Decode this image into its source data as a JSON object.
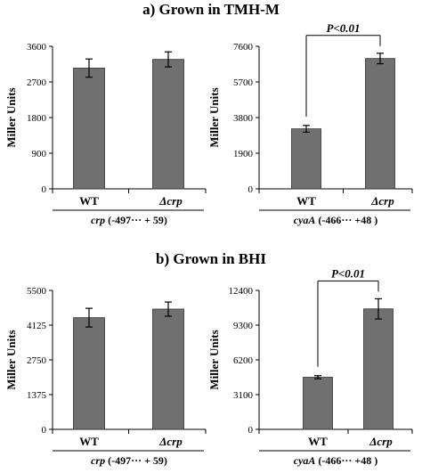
{
  "panels": [
    {
      "title": "a) Grown in TMH-M"
    },
    {
      "title": "b) Grown in BHI"
    }
  ],
  "chart_data": [
    {
      "type": "bar",
      "panel": "a-left",
      "categories": [
        "WT",
        "Δcrp"
      ],
      "category_styles": [
        "bold",
        "bold-italic"
      ],
      "values": [
        3050,
        3270
      ],
      "error": [
        230,
        190
      ],
      "ylabel": "Miller Units",
      "yticks": [
        0,
        900,
        1800,
        2700,
        3600
      ],
      "ylim": [
        0,
        3600
      ],
      "xlabel": "crp (-497··· + 59)",
      "xlabel_italic_part": "crp",
      "bar_color": "#707070"
    },
    {
      "type": "bar",
      "panel": "a-right",
      "categories": [
        "WT",
        "Δcrp"
      ],
      "category_styles": [
        "bold",
        "bold-italic"
      ],
      "values": [
        3200,
        6950
      ],
      "error": [
        180,
        280
      ],
      "ylabel": "Miller Units",
      "yticks": [
        0,
        1900,
        3800,
        5700,
        7600
      ],
      "ylim": [
        0,
        7600
      ],
      "xlabel": "cyaA (-466··· +48 )",
      "xlabel_italic_part": "cyaA",
      "annotation": "P<0.01",
      "bar_color": "#707070"
    },
    {
      "type": "bar",
      "panel": "b-left",
      "categories": [
        "WT",
        "Δcrp"
      ],
      "category_styles": [
        "bold",
        "bold-italic"
      ],
      "values": [
        4420,
        4760
      ],
      "error": [
        370,
        280
      ],
      "ylabel": "Miller Units",
      "yticks": [
        0,
        1375,
        2750,
        4125,
        5500
      ],
      "ylim": [
        0,
        5500
      ],
      "xlabel": "crp (-497··· + 59)",
      "xlabel_italic_part": "crp",
      "bar_color": "#707070"
    },
    {
      "type": "bar",
      "panel": "b-right",
      "categories": [
        "WT",
        "Δcrp"
      ],
      "category_styles": [
        "bold",
        "bold-italic"
      ],
      "values": [
        4650,
        10750
      ],
      "error": [
        140,
        900
      ],
      "ylabel": "Miller Units",
      "yticks": [
        0,
        3100,
        6200,
        9300,
        12400
      ],
      "ylim": [
        0,
        12400
      ],
      "xlabel": "cyaA (-466··· +48 )",
      "xlabel_italic_part": "cyaA",
      "annotation": "P<0.01",
      "bar_color": "#707070"
    }
  ]
}
